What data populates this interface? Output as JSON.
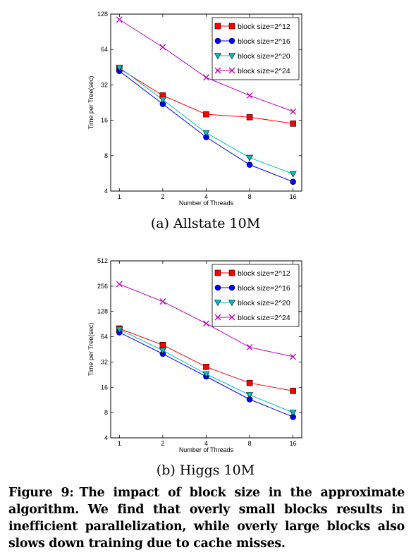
{
  "chart_data": [
    {
      "type": "line",
      "subcaption": "(a) Allstate 10M",
      "xlabel": "Number of Threads",
      "ylabel": "Time per Tree(sec)",
      "x": [
        1,
        2,
        4,
        8,
        16
      ],
      "x_ticks": [
        "1",
        "2",
        "4",
        "8",
        "16"
      ],
      "y_scale": "log2",
      "ylim": [
        4,
        128
      ],
      "y_ticks": [
        "4",
        "8",
        "16",
        "32",
        "64",
        "128"
      ],
      "grid": false,
      "legend_position": "top-right",
      "series": [
        {
          "name": "block size=2^12",
          "color": "#ff0000",
          "marker": "square",
          "values": [
            44,
            26,
            18,
            17,
            15
          ]
        },
        {
          "name": "block size=2^16",
          "color": "#0000ff",
          "marker": "circle",
          "values": [
            42,
            22,
            11.5,
            6.7,
            4.8
          ]
        },
        {
          "name": "block size=2^20",
          "color": "#00bfbf",
          "marker": "triangle",
          "values": [
            45,
            24,
            12.5,
            7.7,
            5.6
          ]
        },
        {
          "name": "block size=2^24",
          "color": "#bf00bf",
          "marker": "x",
          "values": [
            115,
            67,
            37,
            26,
            19
          ]
        }
      ]
    },
    {
      "type": "line",
      "subcaption": "(b) Higgs 10M",
      "xlabel": "Number of Threads",
      "ylabel": "Time per Tree(sec)",
      "x": [
        1,
        2,
        4,
        8,
        16
      ],
      "x_ticks": [
        "1",
        "2",
        "4",
        "8",
        "16"
      ],
      "y_scale": "log2",
      "ylim": [
        4,
        512
      ],
      "y_ticks": [
        "4",
        "8",
        "16",
        "32",
        "64",
        "128",
        "256",
        "512"
      ],
      "grid": false,
      "legend_position": "top-right",
      "series": [
        {
          "name": "block size=2^12",
          "color": "#ff0000",
          "marker": "square",
          "values": [
            80,
            51,
            28,
            18,
            14.5
          ]
        },
        {
          "name": "block size=2^16",
          "color": "#0000ff",
          "marker": "circle",
          "values": [
            72,
            40,
            21.5,
            11.5,
            7.1
          ]
        },
        {
          "name": "block size=2^20",
          "color": "#00bfbf",
          "marker": "triangle",
          "values": [
            78,
            44,
            23,
            13,
            8
          ]
        },
        {
          "name": "block size=2^24",
          "color": "#bf00bf",
          "marker": "x",
          "values": [
            270,
            168,
            92,
            48,
            37
          ]
        }
      ]
    }
  ],
  "figure_caption": {
    "label": "Figure 9:",
    "text": "The impact of block size in the approximate algorithm. We find that overly small blocks results in inefficient parallelization, while overly large blocks also slows down training due to cache misses."
  }
}
